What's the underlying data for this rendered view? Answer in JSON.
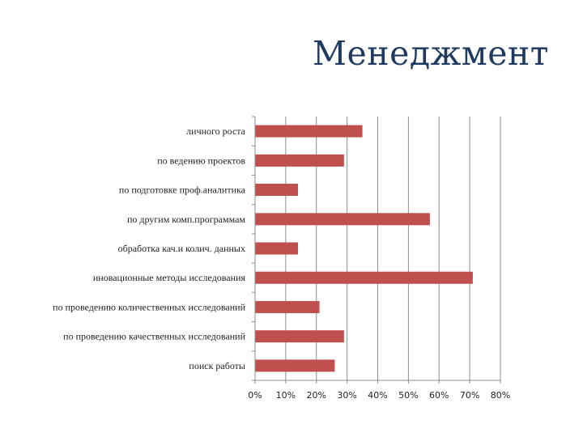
{
  "slide": {
    "title": "Менеджмент"
  },
  "chart_data": {
    "type": "bar",
    "orientation": "horizontal",
    "categories": [
      "личного роста",
      "по ведению проектов",
      "по подготовке проф.аналитика",
      "по другим комп.программам",
      "обработка кач.и колич. данных",
      "иновационные методы исследования",
      "по проведению количественных исследований",
      "по проведению качественных исследований",
      "поиск работы"
    ],
    "values": [
      35,
      29,
      14,
      57,
      14,
      71,
      21,
      29,
      26
    ],
    "xlim": [
      0,
      80
    ],
    "xticks": [
      "0%",
      "10%",
      "20%",
      "30%",
      "40%",
      "50%",
      "60%",
      "70%",
      "80%"
    ],
    "bar_color": "#c0504d",
    "grid": true,
    "legend": "none"
  }
}
